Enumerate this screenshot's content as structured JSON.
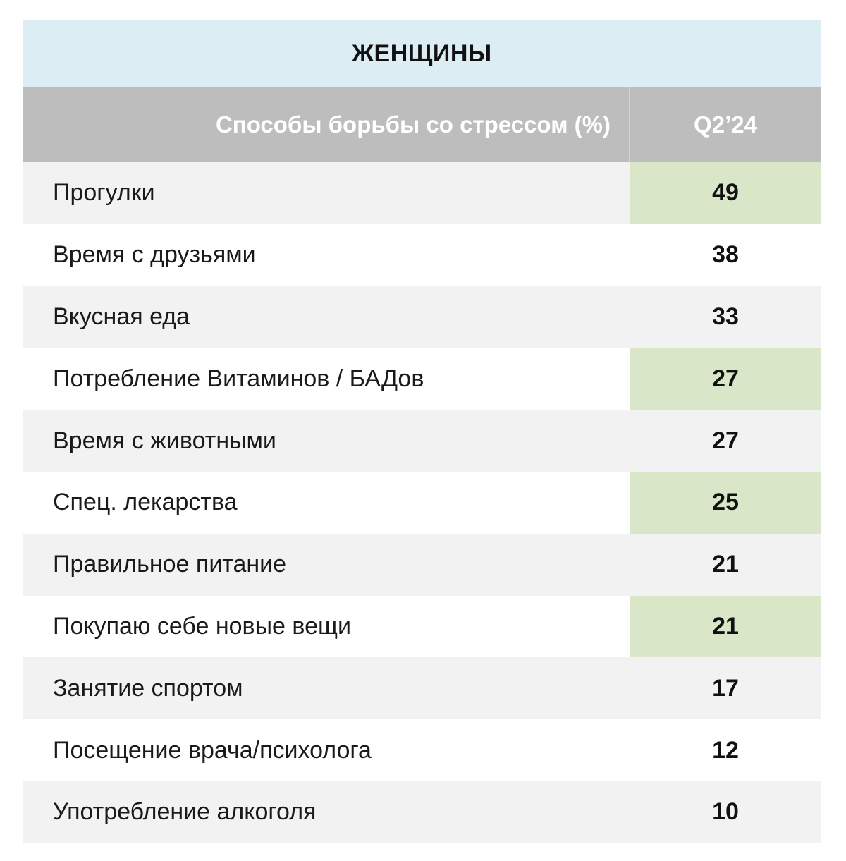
{
  "chart_data": {
    "type": "table",
    "title": "ЖЕНЩИНЫ",
    "columns": [
      "Способы борьбы со стрессом (%)",
      "Q2’24"
    ],
    "rows": [
      {
        "label": "Прогулки",
        "value": "49",
        "highlight": true
      },
      {
        "label": "Время с друзьями",
        "value": "38",
        "highlight": false
      },
      {
        "label": "Вкусная еда",
        "value": "33",
        "highlight": false
      },
      {
        "label": "Потребление Витаминов / БАДов",
        "value": "27",
        "highlight": true
      },
      {
        "label": "Время с животными",
        "value": "27",
        "highlight": false
      },
      {
        "label": "Спец. лекарства",
        "value": "25",
        "highlight": true
      },
      {
        "label": "Правильное питание",
        "value": "21",
        "highlight": false
      },
      {
        "label": "Покупаю себе новые вещи",
        "value": "21",
        "highlight": true
      },
      {
        "label": "Занятие спортом",
        "value": "17",
        "highlight": false
      },
      {
        "label": "Посещение врача/психолога",
        "value": "12",
        "highlight": false
      },
      {
        "label": "Употребление алкоголя",
        "value": "10",
        "highlight": false
      }
    ],
    "colors": {
      "title_bg": "#dcedf4",
      "header_bg": "#bdbdbd",
      "row_alt_bg": "#f2f2f2",
      "highlight_bg": "#d9e7c8"
    }
  }
}
